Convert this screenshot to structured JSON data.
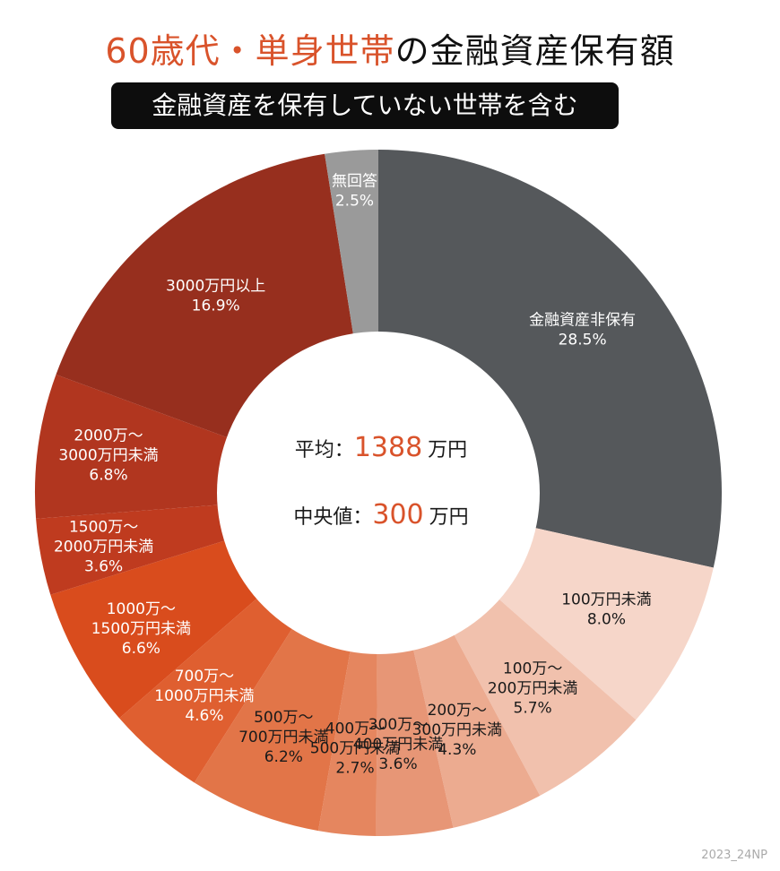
{
  "header": {
    "title_accent": "60歳代・単身世帯",
    "title_rest": "の金融資産保有額",
    "subtitle": "金融資産を保有していない世帯を含む"
  },
  "center": {
    "mean_label": "平均：",
    "mean_value": "1388",
    "mean_unit": "万円",
    "median_label": "中央値：",
    "median_value": "300",
    "median_unit": "万円"
  },
  "credit": "2023_24NP",
  "chart_data": {
    "type": "pie",
    "subtype": "donut",
    "title": "60歳代・単身世帯の金融資産保有額",
    "subtitle": "金融資産を保有していない世帯を含む",
    "start": "12 o'clock, clockwise",
    "unit": "%",
    "slices": [
      {
        "label": [
          "金融資産非保有"
        ],
        "value": 28.5,
        "value_text": "28.5%",
        "color": "#55585b",
        "text_color": "#ffffff"
      },
      {
        "label": [
          "100万円未満"
        ],
        "value": 8.0,
        "value_text": "8.0%",
        "color": "#f6d6c9",
        "text_color": "#1a1a1a"
      },
      {
        "label": [
          "100万～",
          "200万円未満"
        ],
        "value": 5.7,
        "value_text": "5.7%",
        "color": "#f1c1ad",
        "text_color": "#1a1a1a"
      },
      {
        "label": [
          "200万～",
          "300万円未満"
        ],
        "value": 4.3,
        "value_text": "4.3%",
        "color": "#ecab90",
        "text_color": "#1a1a1a"
      },
      {
        "label": [
          "300万～",
          "400万円未満"
        ],
        "value": 3.6,
        "value_text": "3.6%",
        "color": "#e79676",
        "text_color": "#1a1a1a"
      },
      {
        "label": [
          "400万～",
          "500万円未満"
        ],
        "value": 2.7,
        "value_text": "2.7%",
        "color": "#e5865f",
        "text_color": "#1a1a1a"
      },
      {
        "label": [
          "500万～",
          "700万円未満"
        ],
        "value": 6.2,
        "value_text": "6.2%",
        "color": "#e27548",
        "text_color": "#1a1a1a"
      },
      {
        "label": [
          "700万～",
          "1000万円未満"
        ],
        "value": 4.6,
        "value_text": "4.6%",
        "color": "#df5f30",
        "text_color": "#ffffff"
      },
      {
        "label": [
          "1000万～",
          "1500万円未満"
        ],
        "value": 6.6,
        "value_text": "6.6%",
        "color": "#d94c1d",
        "text_color": "#ffffff"
      },
      {
        "label": [
          "1500万～",
          "2000万円未満"
        ],
        "value": 3.6,
        "value_text": "3.6%",
        "color": "#bf3b1f",
        "text_color": "#ffffff"
      },
      {
        "label": [
          "2000万～",
          "3000万円未満"
        ],
        "value": 6.8,
        "value_text": "6.8%",
        "color": "#b1361f",
        "text_color": "#ffffff"
      },
      {
        "label": [
          "3000万円以上"
        ],
        "value": 16.9,
        "value_text": "16.9%",
        "color": "#972f1e",
        "text_color": "#ffffff"
      },
      {
        "label": [
          "無回答"
        ],
        "value": 2.5,
        "value_text": "2.5%",
        "color": "#9a9a9a",
        "text_color": "#ffffff"
      }
    ]
  }
}
